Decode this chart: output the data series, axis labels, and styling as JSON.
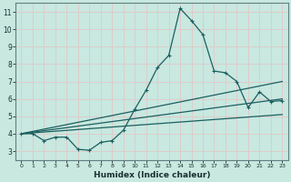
{
  "xlabel": "Humidex (Indice chaleur)",
  "bg_color": "#c8e8e0",
  "grid_color": "#e8f8f4",
  "line_color": "#1a6060",
  "x_ticks": [
    0,
    1,
    2,
    3,
    4,
    5,
    6,
    7,
    8,
    9,
    10,
    11,
    12,
    13,
    14,
    15,
    16,
    17,
    18,
    19,
    20,
    21,
    22,
    23
  ],
  "y_ticks": [
    3,
    4,
    5,
    6,
    7,
    8,
    9,
    10,
    11
  ],
  "xlim": [
    -0.5,
    23.5
  ],
  "ylim": [
    2.5,
    11.5
  ],
  "curve_x": [
    0,
    1,
    2,
    3,
    4,
    5,
    6,
    7,
    8,
    9,
    10,
    11,
    12,
    13,
    14,
    15,
    16,
    17,
    18,
    19,
    20,
    21,
    22,
    23
  ],
  "curve_y": [
    4.0,
    4.0,
    3.6,
    3.8,
    3.8,
    3.1,
    3.05,
    3.5,
    3.6,
    4.2,
    5.4,
    6.5,
    7.8,
    8.5,
    11.2,
    10.5,
    9.7,
    7.6,
    7.5,
    7.0,
    5.5,
    6.4,
    5.85,
    5.9
  ],
  "line1_x": [
    0,
    23
  ],
  "line1_y": [
    4.0,
    7.0
  ],
  "line2_x": [
    0,
    23
  ],
  "line2_y": [
    4.0,
    6.0
  ],
  "line3_x": [
    0,
    23
  ],
  "line3_y": [
    4.0,
    5.1
  ]
}
